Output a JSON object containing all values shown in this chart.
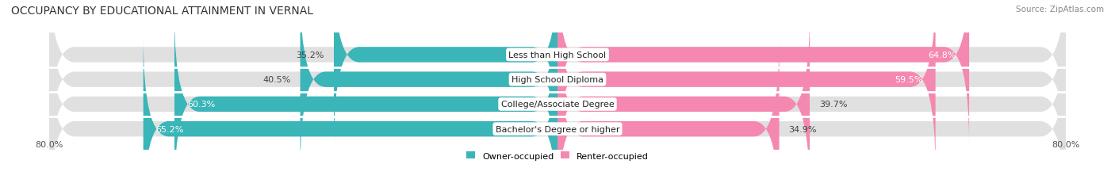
{
  "title": "OCCUPANCY BY EDUCATIONAL ATTAINMENT IN VERNAL",
  "source": "Source: ZipAtlas.com",
  "categories": [
    "Less than High School",
    "High School Diploma",
    "College/Associate Degree",
    "Bachelor's Degree or higher"
  ],
  "owner_values": [
    35.2,
    40.5,
    60.3,
    65.2
  ],
  "renter_values": [
    64.8,
    59.5,
    39.7,
    34.9
  ],
  "owner_color": "#3ab5b8",
  "renter_color": "#f588b0",
  "bar_bg_color": "#e0e0e0",
  "owner_label": "Owner-occupied",
  "renter_label": "Renter-occupied",
  "x_left_label": "80.0%",
  "x_right_label": "80.0%",
  "title_fontsize": 10,
  "source_fontsize": 7.5,
  "bar_height": 0.62,
  "background_color": "#ffffff",
  "label_fontsize": 8,
  "cat_fontsize": 8
}
